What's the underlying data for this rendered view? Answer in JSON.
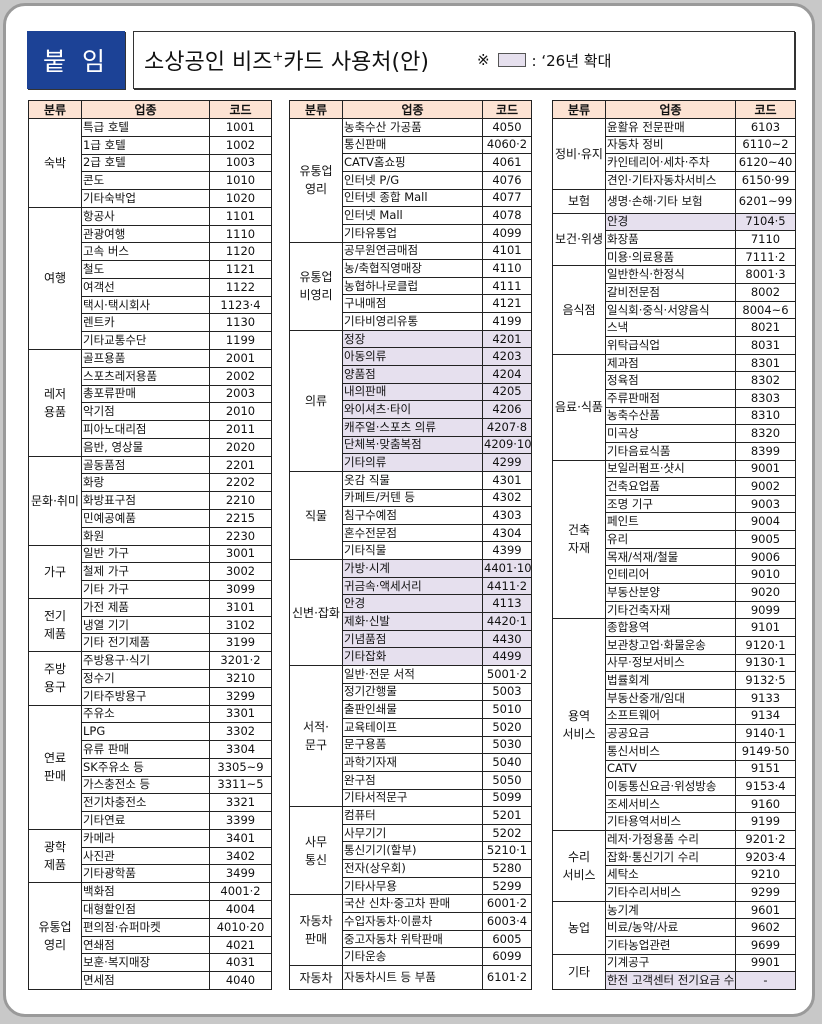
{
  "header": {
    "badge": "붙 임",
    "title_main": "소상공인 비즈",
    "title_sup": "+",
    "title_rest": "카드 사용처(안)",
    "legend_mark": "※",
    "legend_text": ": ‘26년 확대",
    "new_color": "#e6e0ee",
    "badge_color": "#1c4296",
    "header_color": "#fde3d3"
  },
  "columns": [
    "분류",
    "업종",
    "코드"
  ],
  "tables": [
    [
      {
        "category": "숙박",
        "rows": [
          {
            "name": "특급 호텔",
            "code": "1001"
          },
          {
            "name": "1급 호텔",
            "code": "1002"
          },
          {
            "name": "2급 호텔",
            "code": "1003"
          },
          {
            "name": "콘도",
            "code": "1010"
          },
          {
            "name": "기타숙박업",
            "code": "1020"
          }
        ]
      },
      {
        "category": "여행",
        "rows": [
          {
            "name": "항공사",
            "code": "1101"
          },
          {
            "name": "관광여행",
            "code": "1110"
          },
          {
            "name": "고속 버스",
            "code": "1120"
          },
          {
            "name": "철도",
            "code": "1121"
          },
          {
            "name": "여객선",
            "code": "1122"
          },
          {
            "name": "택시·택시회사",
            "code": "1123·4"
          },
          {
            "name": "렌트카",
            "code": "1130"
          },
          {
            "name": "기타교통수단",
            "code": "1199"
          }
        ]
      },
      {
        "category": "레저\n용품",
        "rows": [
          {
            "name": "골프용품",
            "code": "2001"
          },
          {
            "name": "스포츠레저용품",
            "code": "2002"
          },
          {
            "name": "총포류판매",
            "code": "2003"
          },
          {
            "name": "악기점",
            "code": "2010"
          },
          {
            "name": "피아노대리점",
            "code": "2011"
          },
          {
            "name": "음반, 영상물",
            "code": "2020"
          }
        ]
      },
      {
        "category": "문화·취미",
        "rows": [
          {
            "name": "골동품점",
            "code": "2201"
          },
          {
            "name": "화랑",
            "code": "2202"
          },
          {
            "name": "화방표구점",
            "code": "2210"
          },
          {
            "name": "민예공예품",
            "code": "2215"
          },
          {
            "name": "화원",
            "code": "2230"
          }
        ]
      },
      {
        "category": "가구",
        "rows": [
          {
            "name": "일반 가구",
            "code": "3001"
          },
          {
            "name": "철제 가구",
            "code": "3002"
          },
          {
            "name": "기타 가구",
            "code": "3099"
          }
        ]
      },
      {
        "category": "전기\n제품",
        "rows": [
          {
            "name": "가전 제품",
            "code": "3101"
          },
          {
            "name": "냉열 기기",
            "code": "3102"
          },
          {
            "name": "기타 전기제품",
            "code": "3199"
          }
        ]
      },
      {
        "category": "주방\n용구",
        "rows": [
          {
            "name": "주방용구·식기",
            "code": "3201·2"
          },
          {
            "name": "정수기",
            "code": "3210"
          },
          {
            "name": "기타주방용구",
            "code": "3299"
          }
        ]
      },
      {
        "category": "연료\n판매",
        "rows": [
          {
            "name": "주유소",
            "code": "3301"
          },
          {
            "name": "LPG",
            "code": "3302"
          },
          {
            "name": "유류 판매",
            "code": "3304"
          },
          {
            "name": "SK주유소 등",
            "code": "3305~9"
          },
          {
            "name": "가스충전소 등",
            "code": "3311~5"
          },
          {
            "name": "전기차충전소",
            "code": "3321"
          },
          {
            "name": "기타연료",
            "code": "3399"
          }
        ]
      },
      {
        "category": "광학\n제품",
        "rows": [
          {
            "name": "카메라",
            "code": "3401"
          },
          {
            "name": "사진관",
            "code": "3402"
          },
          {
            "name": "기타광학품",
            "code": "3499"
          }
        ]
      },
      {
        "category": "유통업\n영리",
        "rows": [
          {
            "name": "백화점",
            "code": "4001·2"
          },
          {
            "name": "대형할인점",
            "code": "4004"
          },
          {
            "name": "편의점·슈퍼마켓",
            "code": "4010·20"
          },
          {
            "name": "연쇄점",
            "code": "4021"
          },
          {
            "name": "보훈·복지매장",
            "code": "4031"
          },
          {
            "name": "면세점",
            "code": "4040"
          }
        ]
      }
    ],
    [
      {
        "category": "유통업\n영리",
        "rows": [
          {
            "name": "농축수산 가공품",
            "code": "4050"
          },
          {
            "name": "통신판매",
            "code": "4060·2"
          },
          {
            "name": "CATV홈쇼핑",
            "code": "4061"
          },
          {
            "name": "인터넷 P/G",
            "code": "4076"
          },
          {
            "name": "인터넷 종합 Mall",
            "code": "4077"
          },
          {
            "name": "인터넷 Mall",
            "code": "4078"
          },
          {
            "name": "기타유통업",
            "code": "4099"
          }
        ]
      },
      {
        "category": "유통업\n비영리",
        "rows": [
          {
            "name": "공무원연금매점",
            "code": "4101"
          },
          {
            "name": "농/축협직영매장",
            "code": "4110"
          },
          {
            "name": "농협하나로클럽",
            "code": "4111"
          },
          {
            "name": "구내매점",
            "code": "4121"
          },
          {
            "name": "기타비영리유통",
            "code": "4199"
          }
        ]
      },
      {
        "category": "의류",
        "rows": [
          {
            "name": "정장",
            "code": "4201",
            "new": true
          },
          {
            "name": "아동의류",
            "code": "4203",
            "new": true
          },
          {
            "name": "양품점",
            "code": "4204",
            "new": true
          },
          {
            "name": "내의판매",
            "code": "4205",
            "new": true
          },
          {
            "name": "와이셔츠·타이",
            "code": "4206",
            "new": true
          },
          {
            "name": "캐주얼·스포츠 의류",
            "code": "4207·8",
            "new": true
          },
          {
            "name": "단체복·맞춤복점",
            "code": "4209·10",
            "new": true
          },
          {
            "name": "기타의류",
            "code": "4299",
            "new": true
          }
        ]
      },
      {
        "category": "직물",
        "rows": [
          {
            "name": "옷감 직물",
            "code": "4301"
          },
          {
            "name": "카페트/커텐 등",
            "code": "4302"
          },
          {
            "name": "침구수예점",
            "code": "4303"
          },
          {
            "name": "혼수전문점",
            "code": "4304"
          },
          {
            "name": "기타직물",
            "code": "4399"
          }
        ]
      },
      {
        "category": "신변·잡화",
        "rows": [
          {
            "name": "가방·시계",
            "code": "4401·10",
            "new": true
          },
          {
            "name": "귀금속·액세서리",
            "code": "4411·2",
            "new": true
          },
          {
            "name": "안경",
            "code": "4113",
            "new": true
          },
          {
            "name": "제화·신발",
            "code": "4420·1",
            "new": true
          },
          {
            "name": "기념품점",
            "code": "4430",
            "new": true
          },
          {
            "name": "기타잡화",
            "code": "4499",
            "new": true
          }
        ]
      },
      {
        "category": "서적·\n문구",
        "rows": [
          {
            "name": "일반·전문 서적",
            "code": "5001·2"
          },
          {
            "name": "정기간행물",
            "code": "5003"
          },
          {
            "name": "출판인쇄물",
            "code": "5010"
          },
          {
            "name": "교육테이프",
            "code": "5020"
          },
          {
            "name": "문구용품",
            "code": "5030"
          },
          {
            "name": "과학기자재",
            "code": "5040"
          },
          {
            "name": "완구점",
            "code": "5050"
          },
          {
            "name": "기타서적문구",
            "code": "5099"
          }
        ]
      },
      {
        "category": "사무\n통신",
        "rows": [
          {
            "name": "컴퓨터",
            "code": "5201"
          },
          {
            "name": "사무기기",
            "code": "5202"
          },
          {
            "name": "통신기기(할부)",
            "code": "5210·1"
          },
          {
            "name": "전자(상우회)",
            "code": "5280"
          },
          {
            "name": "기타사무용",
            "code": "5299"
          }
        ]
      },
      {
        "category": "자동차\n판매",
        "rows": [
          {
            "name": "국산 신차·중고차 판매",
            "code": "6001·2"
          },
          {
            "name": "수입자동차·이륜차",
            "code": "6003·4"
          },
          {
            "name": "중고자동차 위탁판매",
            "code": "6005"
          },
          {
            "name": "기타운송",
            "code": "6099"
          }
        ]
      },
      {
        "category": "자동차",
        "rows": [
          {
            "name": "자동차시트 등 부품",
            "code": "6101·2"
          }
        ]
      }
    ],
    [
      {
        "category": "정비·유지",
        "rows": [
          {
            "name": "윤활유 전문판매",
            "code": "6103"
          },
          {
            "name": "자동차 정비",
            "code": "6110~2"
          },
          {
            "name": "카인테리어·세차·주차",
            "code": "6120~40"
          },
          {
            "name": "견인·기타자동차서비스",
            "code": "6150·99"
          }
        ]
      },
      {
        "category": "보험",
        "rows": [
          {
            "name": "생명·손해·기타 보험",
            "code": "6201~99"
          }
        ]
      },
      {
        "category": "보건·위생",
        "rows": [
          {
            "name": "안경",
            "code": "7104·5",
            "new": true
          },
          {
            "name": "화장품",
            "code": "7110"
          },
          {
            "name": "미용·의료용품",
            "code": "7111·2"
          }
        ]
      },
      {
        "category": "음식점",
        "rows": [
          {
            "name": "일반한식·한정식",
            "code": "8001·3"
          },
          {
            "name": "갈비전문점",
            "code": "8002"
          },
          {
            "name": "일식회·중식·서양음식",
            "code": "8004~6"
          },
          {
            "name": "스낵",
            "code": "8021"
          },
          {
            "name": "위탁급식업",
            "code": "8031"
          }
        ]
      },
      {
        "category": "음료·식품",
        "rows": [
          {
            "name": "제과점",
            "code": "8301"
          },
          {
            "name": "정육점",
            "code": "8302"
          },
          {
            "name": "주류판매점",
            "code": "8303"
          },
          {
            "name": "농축수산품",
            "code": "8310"
          },
          {
            "name": "미곡상",
            "code": "8320"
          },
          {
            "name": "기타음료식품",
            "code": "8399"
          }
        ]
      },
      {
        "category": "건축\n자재",
        "rows": [
          {
            "name": "보일러펌프·샷시",
            "code": "9001"
          },
          {
            "name": "건축요업품",
            "code": "9002"
          },
          {
            "name": "조명 기구",
            "code": "9003"
          },
          {
            "name": "페인트",
            "code": "9004"
          },
          {
            "name": "유리",
            "code": "9005"
          },
          {
            "name": "목재/석재/철물",
            "code": "9006"
          },
          {
            "name": "인테리어",
            "code": "9010"
          },
          {
            "name": "부동산분양",
            "code": "9020"
          },
          {
            "name": "기타건축자재",
            "code": "9099"
          }
        ]
      },
      {
        "category": "용역\n서비스",
        "rows": [
          {
            "name": "종합용역",
            "code": "9101"
          },
          {
            "name": "보관창고업·화물운송",
            "code": "9120·1"
          },
          {
            "name": "사무·정보서비스",
            "code": "9130·1"
          },
          {
            "name": "법률회계",
            "code": "9132·5"
          },
          {
            "name": "부동산중개/임대",
            "code": "9133"
          },
          {
            "name": "소프트웨어",
            "code": "9134"
          },
          {
            "name": "공공요금",
            "code": "9140·1"
          },
          {
            "name": "통신서비스",
            "code": "9149·50"
          },
          {
            "name": "CATV",
            "code": "9151"
          },
          {
            "name": "이동통신요금·위성방송",
            "code": "9153·4"
          },
          {
            "name": "조세서비스",
            "code": "9160"
          },
          {
            "name": "기타용역서비스",
            "code": "9199"
          }
        ]
      },
      {
        "category": "수리\n서비스",
        "rows": [
          {
            "name": "레저·가정용품 수리",
            "code": "9201·2"
          },
          {
            "name": "잡화·통신기기 수리",
            "code": "9203·4"
          },
          {
            "name": "세탁소",
            "code": "9210"
          },
          {
            "name": "기타수리서비스",
            "code": "9299"
          }
        ]
      },
      {
        "category": "농업",
        "rows": [
          {
            "name": "농기계",
            "code": "9601"
          },
          {
            "name": "비료/농약/사료",
            "code": "9602"
          },
          {
            "name": "기타농업관련",
            "code": "9699"
          }
        ]
      },
      {
        "category": "기타",
        "rows": [
          {
            "name": "기계공구",
            "code": "9901"
          },
          {
            "name": "한전 고객센터 전기요금 수납",
            "code": "-",
            "new": true
          }
        ]
      }
    ]
  ]
}
